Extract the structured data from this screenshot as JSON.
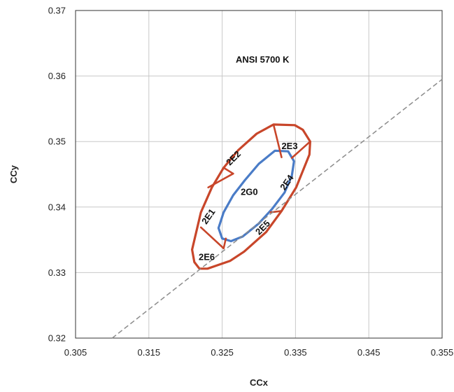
{
  "chart_data": {
    "type": "scatter",
    "xlabel": "CCx",
    "ylabel": "CCy",
    "xlim": [
      0.305,
      0.355
    ],
    "ylim": [
      0.32,
      0.37
    ],
    "xticks": [
      "0.305",
      "0.315",
      "0.325",
      "0.335",
      "0.345",
      "0.355"
    ],
    "yticks": [
      "0.32",
      "0.33",
      "0.34",
      "0.35",
      "0.36",
      "0.37"
    ],
    "grid": true,
    "annotations": [
      {
        "text": "ANSI 5700 K",
        "x": 0.3305,
        "y": 0.3624,
        "angle": 0
      },
      {
        "text": "2E3",
        "x": 0.3342,
        "y": 0.3492,
        "angle": 0
      },
      {
        "text": "2E2",
        "x": 0.3266,
        "y": 0.3474,
        "angle": -45
      },
      {
        "text": "2E4",
        "x": 0.3339,
        "y": 0.3437,
        "angle": -55
      },
      {
        "text": "2G0",
        "x": 0.3287,
        "y": 0.3422,
        "angle": 0
      },
      {
        "text": "2E1",
        "x": 0.3232,
        "y": 0.3385,
        "angle": -55
      },
      {
        "text": "2E5",
        "x": 0.3306,
        "y": 0.3368,
        "angle": -45
      },
      {
        "text": "2E6",
        "x": 0.3229,
        "y": 0.3323,
        "angle": 0
      }
    ],
    "series": [
      {
        "kind": "outline",
        "color": "#c8462a",
        "points": [
          [
            0.332,
            0.3526
          ],
          [
            0.3349,
            0.3525
          ],
          [
            0.336,
            0.3518
          ],
          [
            0.337,
            0.35
          ],
          [
            0.3369,
            0.348
          ],
          [
            0.3351,
            0.343
          ],
          [
            0.3331,
            0.3394
          ],
          [
            0.331,
            0.3362
          ],
          [
            0.328,
            0.3332
          ],
          [
            0.3261,
            0.3318
          ],
          [
            0.323,
            0.3306
          ],
          [
            0.3219,
            0.3306
          ],
          [
            0.3212,
            0.3316
          ],
          [
            0.3209,
            0.3335
          ],
          [
            0.3221,
            0.3392
          ],
          [
            0.3236,
            0.343
          ],
          [
            0.3252,
            0.346
          ],
          [
            0.3272,
            0.3487
          ],
          [
            0.3297,
            0.3512
          ]
        ]
      },
      {
        "kind": "outline",
        "color": "#4a7cc7",
        "points": [
          [
            0.3322,
            0.3486
          ],
          [
            0.33,
            0.3466
          ],
          [
            0.3281,
            0.3441
          ],
          [
            0.3265,
            0.3418
          ],
          [
            0.3252,
            0.3392
          ],
          [
            0.3245,
            0.3368
          ],
          [
            0.325,
            0.3352
          ],
          [
            0.3262,
            0.3348
          ],
          [
            0.3278,
            0.3355
          ],
          [
            0.33,
            0.3375
          ],
          [
            0.3318,
            0.3397
          ],
          [
            0.3335,
            0.3422
          ],
          [
            0.3345,
            0.3448
          ],
          [
            0.3348,
            0.347
          ],
          [
            0.334,
            0.3485
          ]
        ]
      },
      {
        "kind": "segments",
        "color": "#c8462a",
        "segments": [
          [
            [
              0.332,
              0.3526
            ],
            [
              0.3331,
              0.3476
            ]
          ],
          [
            [
              0.3345,
              0.3475
            ],
            [
              0.337,
              0.35
            ]
          ],
          [
            [
              0.3351,
              0.343
            ],
            [
              0.3331,
              0.3394
            ]
          ],
          [
            [
              0.3316,
              0.3392
            ],
            [
              0.3331,
              0.3394
            ]
          ],
          [
            [
              0.3255,
              0.3352
            ],
            [
              0.3252,
              0.3337
            ]
          ],
          [
            [
              0.3221,
              0.3369
            ],
            [
              0.3252,
              0.3337
            ]
          ],
          [
            [
              0.3252,
              0.346
            ],
            [
              0.3265,
              0.3451
            ]
          ],
          [
            [
              0.3231,
              0.343
            ],
            [
              0.3265,
              0.3451
            ]
          ]
        ]
      },
      {
        "kind": "dashed-line",
        "color": "#8c8c8c",
        "points": [
          [
            0.31,
            0.32
          ],
          [
            0.355,
            0.3595
          ]
        ]
      }
    ]
  }
}
